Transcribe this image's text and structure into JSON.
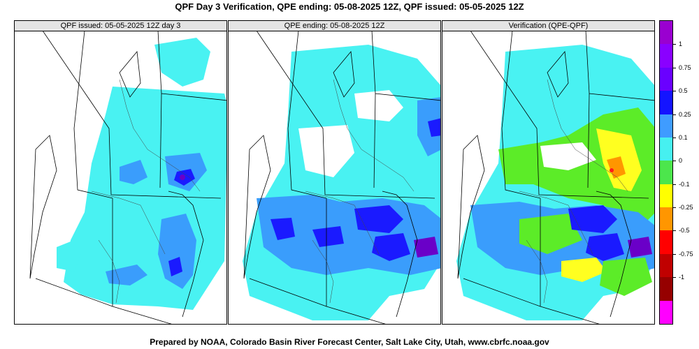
{
  "figure": {
    "title": "QPF Day 3 Verification, QPE ending: 05-08-2025 12Z, QPF issued: 05-05-2025 12Z",
    "footer": "Prepared by NOAA, Colorado Basin River Forecast Center, Salt Lake City, Utah, www.cbrfc.noaa.gov"
  },
  "panels": [
    {
      "title": "QPF issued: 05-05-2025 12Z day 3"
    },
    {
      "title": "QPE ending: 05-08-2025 12Z"
    },
    {
      "title": "Verification (QPE-QPF)"
    }
  ],
  "colorbar": {
    "labels": [
      "1",
      "0.75",
      "0.5",
      "0.25",
      "0.1",
      "0",
      "-0.1",
      "-0.25",
      "-0.5",
      "-0.75",
      "-1"
    ],
    "colors": [
      "#9a00d0",
      "#8a00ff",
      "#6a00ff",
      "#1414ff",
      "#3f9cff",
      "#46f0f0",
      "#4ce64c",
      "#ffff00",
      "#ff9600",
      "#ff0000",
      "#c00000",
      "#960000",
      "#ff00ff"
    ]
  },
  "colors": {
    "cyan": "#49f2f2",
    "blue_light": "#3a9dfc",
    "blue": "#1a1aff",
    "purple": "#6a00c8",
    "green": "#5cec28",
    "yellow": "#ffff20",
    "orange": "#ff9600",
    "red": "#ff1a1a"
  }
}
